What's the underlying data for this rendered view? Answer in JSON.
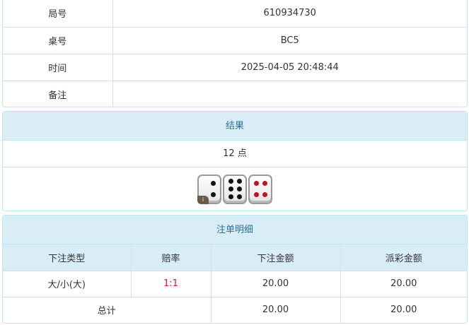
{
  "info": {
    "rows": [
      {
        "label": "局号",
        "value": "610934730"
      },
      {
        "label": "桌号",
        "value": "BC5"
      },
      {
        "label": "时间",
        "value": "2025-04-05 20:48:44"
      },
      {
        "label": "备注",
        "value": ""
      }
    ]
  },
  "result": {
    "title": "结果",
    "points": "12 点",
    "dice": [
      2,
      6,
      4
    ],
    "badge": "i"
  },
  "bets": {
    "title": "注单明细",
    "headers": [
      "下注类型",
      "赔率",
      "下注金额",
      "派彩金额"
    ],
    "rows": [
      {
        "type": "大/小(大)",
        "odds": "1:1",
        "amount": "20.00",
        "payout": "20.00"
      }
    ],
    "total": {
      "label": "总计",
      "amount": "20.00",
      "payout": "20.00"
    },
    "odds_color": "#e4141b"
  },
  "colors": {
    "header_bg": "#d9edf7",
    "header_text": "#31708f"
  }
}
